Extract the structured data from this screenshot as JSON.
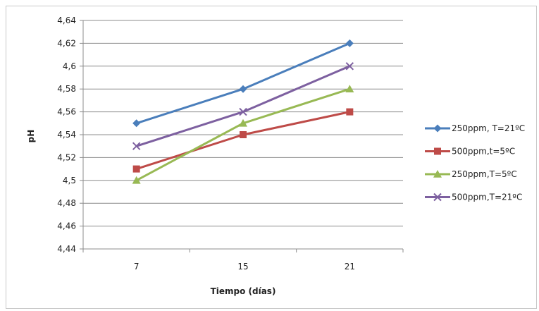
{
  "chart_data": {
    "type": "line",
    "title": "",
    "xlabel": "Tiempo (días)",
    "ylabel": "pH",
    "categories": [
      "7",
      "15",
      "21"
    ],
    "ylim": [
      4.44,
      4.64
    ],
    "yticks": [
      "4,44",
      "4,46",
      "4,48",
      "4,5",
      "4,52",
      "4,54",
      "4,56",
      "4,58",
      "4,6",
      "4,62",
      "4,64"
    ],
    "grid": true,
    "legend_position": "right",
    "series": [
      {
        "name": "250ppm, T=21ºC",
        "values": [
          4.55,
          4.58,
          4.62
        ],
        "color": "#4a7ebb",
        "marker": "diamond"
      },
      {
        "name": "500ppm,t=5ºC",
        "values": [
          4.51,
          4.54,
          4.56
        ],
        "color": "#be4b48",
        "marker": "square"
      },
      {
        "name": "250ppm,T=5ºC",
        "values": [
          4.5,
          4.55,
          4.58
        ],
        "color": "#98b954",
        "marker": "triangle"
      },
      {
        "name": "500ppm,T=21ºC",
        "values": [
          4.53,
          4.56,
          4.6
        ],
        "color": "#7d60a0",
        "marker": "x"
      }
    ]
  }
}
